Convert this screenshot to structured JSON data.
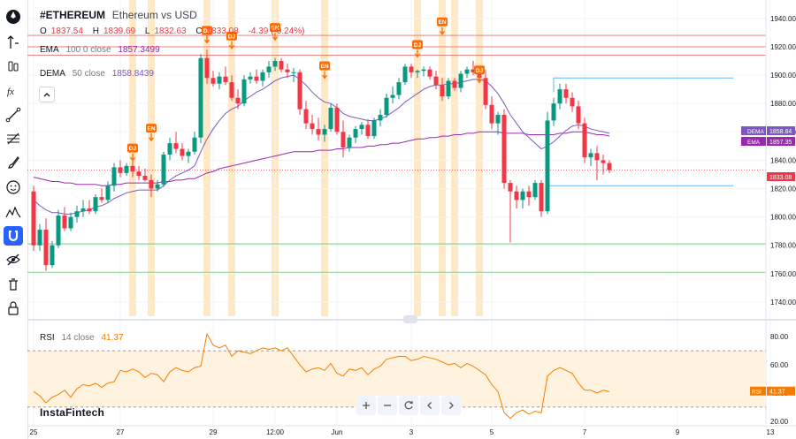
{
  "toolbar": {
    "icons": [
      "logo-icon",
      "cursor-icon",
      "bars-icon",
      "fx-icon",
      "trendline-icon",
      "fibonacci-icon",
      "brush-icon",
      "emoji-icon",
      "pattern-icon",
      "magnet-icon",
      "eye-off-icon",
      "trash-icon",
      "lock-icon"
    ],
    "active": "magnet-icon"
  },
  "header": {
    "symbol": "#ETHEREUM",
    "description": "Ethereum vs USD",
    "open_label": "O",
    "open": "1837.54",
    "high_label": "H",
    "high": "1839.69",
    "low_label": "L",
    "low": "1832.63",
    "close_label": "C",
    "close": "1833.08",
    "change": "-4.39 (-0.24%)"
  },
  "indicators": {
    "ema": {
      "name": "EMA",
      "params": "100 0 close",
      "value": "1857.3499",
      "color": "#9c27b0"
    },
    "dema": {
      "name": "DEMA",
      "params": "50 close",
      "value": "1858.8439",
      "color": "#7e57c2"
    },
    "rsi": {
      "name": "RSI",
      "params": "14 close",
      "value": "41.37",
      "color": "#f57c00"
    }
  },
  "brand": "InstaFintech",
  "colors": {
    "up": "#089981",
    "down": "#f23645",
    "grid": "#f0f3fa",
    "band": "#ffe0b2",
    "flag": "#ff6d00"
  },
  "chart_data": [
    {
      "type": "candlestick",
      "title": "#ETHEREUM",
      "subtitle": "Ethereum vs USD",
      "y_ticks": [
        1740,
        1760,
        1780,
        1800,
        1820,
        1840,
        1860,
        1880,
        1900,
        1920,
        1940
      ],
      "ylim": [
        1730,
        1948
      ],
      "x_ticks": [
        "25",
        "27",
        "29",
        "12:00",
        "Jun",
        "3",
        "5",
        "7",
        "9",
        "13"
      ],
      "x_tick_pos": [
        0,
        14,
        29,
        39,
        49,
        61,
        74,
        89,
        104,
        119
      ],
      "candles": [
        [
          1818,
          1822,
          1776,
          1780
        ],
        [
          1780,
          1795,
          1776,
          1791
        ],
        [
          1791,
          1799,
          1762,
          1766
        ],
        [
          1766,
          1783,
          1764,
          1780
        ],
        [
          1780,
          1805,
          1778,
          1801
        ],
        [
          1801,
          1807,
          1790,
          1792
        ],
        [
          1792,
          1803,
          1790,
          1800
        ],
        [
          1800,
          1808,
          1796,
          1804
        ],
        [
          1804,
          1812,
          1800,
          1806
        ],
        [
          1806,
          1812,
          1802,
          1804
        ],
        [
          1804,
          1816,
          1802,
          1814
        ],
        [
          1814,
          1820,
          1810,
          1812
        ],
        [
          1812,
          1825,
          1810,
          1822
        ],
        [
          1822,
          1838,
          1818,
          1835
        ],
        [
          1835,
          1840,
          1828,
          1831
        ],
        [
          1831,
          1838,
          1829,
          1836
        ],
        [
          1836,
          1840,
          1828,
          1832
        ],
        [
          1832,
          1836,
          1826,
          1829
        ],
        [
          1829,
          1834,
          1825,
          1826
        ],
        [
          1826,
          1830,
          1814,
          1820
        ],
        [
          1820,
          1826,
          1818,
          1823
        ],
        [
          1823,
          1846,
          1821,
          1844
        ],
        [
          1844,
          1856,
          1840,
          1852
        ],
        [
          1852,
          1860,
          1845,
          1848
        ],
        [
          1848,
          1852,
          1840,
          1843
        ],
        [
          1843,
          1848,
          1838,
          1846
        ],
        [
          1846,
          1860,
          1844,
          1856
        ],
        [
          1856,
          1915,
          1852,
          1912
        ],
        [
          1912,
          1918,
          1894,
          1898
        ],
        [
          1898,
          1903,
          1892,
          1894
        ],
        [
          1894,
          1902,
          1890,
          1899
        ],
        [
          1899,
          1906,
          1893,
          1895
        ],
        [
          1895,
          1900,
          1882,
          1884
        ],
        [
          1884,
          1890,
          1876,
          1880
        ],
        [
          1880,
          1900,
          1878,
          1897
        ],
        [
          1897,
          1902,
          1894,
          1899
        ],
        [
          1899,
          1904,
          1894,
          1896
        ],
        [
          1896,
          1904,
          1892,
          1902
        ],
        [
          1902,
          1910,
          1898,
          1906
        ],
        [
          1906,
          1912,
          1903,
          1910
        ],
        [
          1910,
          1912,
          1902,
          1904
        ],
        [
          1904,
          1908,
          1898,
          1902
        ],
        [
          1902,
          1905,
          1895,
          1902
        ],
        [
          1902,
          1904,
          1872,
          1876
        ],
        [
          1876,
          1882,
          1862,
          1866
        ],
        [
          1866,
          1872,
          1858,
          1862
        ],
        [
          1862,
          1870,
          1854,
          1858
        ],
        [
          1858,
          1865,
          1853,
          1862
        ],
        [
          1862,
          1880,
          1860,
          1877
        ],
        [
          1877,
          1880,
          1858,
          1860
        ],
        [
          1860,
          1868,
          1842,
          1849
        ],
        [
          1849,
          1858,
          1846,
          1856
        ],
        [
          1856,
          1864,
          1852,
          1862
        ],
        [
          1862,
          1867,
          1858,
          1865
        ],
        [
          1865,
          1869,
          1855,
          1857
        ],
        [
          1857,
          1870,
          1855,
          1868
        ],
        [
          1868,
          1876,
          1864,
          1872
        ],
        [
          1872,
          1887,
          1870,
          1884
        ],
        [
          1884,
          1892,
          1880,
          1886
        ],
        [
          1886,
          1898,
          1883,
          1895
        ],
        [
          1895,
          1908,
          1893,
          1906
        ],
        [
          1906,
          1908,
          1898,
          1902
        ],
        [
          1902,
          1904,
          1898,
          1903
        ],
        [
          1903,
          1906,
          1899,
          1904
        ],
        [
          1904,
          1906,
          1897,
          1899
        ],
        [
          1899,
          1903,
          1890,
          1893
        ],
        [
          1893,
          1898,
          1882,
          1885
        ],
        [
          1885,
          1898,
          1883,
          1896
        ],
        [
          1896,
          1898,
          1889,
          1891
        ],
        [
          1891,
          1903,
          1888,
          1901
        ],
        [
          1901,
          1906,
          1898,
          1904
        ],
        [
          1904,
          1910,
          1900,
          1902
        ],
        [
          1902,
          1906,
          1896,
          1898
        ],
        [
          1898,
          1904,
          1876,
          1879
        ],
        [
          1879,
          1885,
          1862,
          1866
        ],
        [
          1866,
          1874,
          1858,
          1872
        ],
        [
          1872,
          1876,
          1820,
          1824
        ],
        [
          1824,
          1826,
          1782,
          1818
        ],
        [
          1818,
          1822,
          1806,
          1812
        ],
        [
          1812,
          1820,
          1806,
          1818
        ],
        [
          1818,
          1822,
          1808,
          1814
        ],
        [
          1814,
          1826,
          1812,
          1824
        ],
        [
          1824,
          1826,
          1800,
          1804
        ],
        [
          1804,
          1874,
          1802,
          1868
        ],
        [
          1868,
          1884,
          1864,
          1880
        ],
        [
          1880,
          1894,
          1876,
          1890
        ],
        [
          1890,
          1894,
          1880,
          1884
        ],
        [
          1884,
          1888,
          1874,
          1878
        ],
        [
          1878,
          1882,
          1862,
          1866
        ],
        [
          1866,
          1870,
          1838,
          1842
        ],
        [
          1842,
          1848,
          1836,
          1845
        ],
        [
          1845,
          1850,
          1826,
          1840
        ],
        [
          1840,
          1844,
          1830,
          1838
        ],
        [
          1838,
          1840,
          1831,
          1833
        ]
      ],
      "ema": [
        1828,
        1827,
        1826,
        1825,
        1825,
        1824,
        1824,
        1823,
        1823,
        1823,
        1823,
        1822,
        1822,
        1823,
        1823,
        1824,
        1824,
        1824,
        1824,
        1824,
        1824,
        1825,
        1825,
        1826,
        1826,
        1827,
        1827,
        1829,
        1831,
        1832,
        1834,
        1835,
        1836,
        1837,
        1838,
        1839,
        1840,
        1841,
        1842,
        1843,
        1844,
        1845,
        1846,
        1846,
        1846,
        1846,
        1847,
        1847,
        1847,
        1848,
        1848,
        1849,
        1849,
        1849,
        1850,
        1850,
        1851,
        1851,
        1852,
        1852,
        1853,
        1854,
        1855,
        1855,
        1856,
        1856,
        1857,
        1857,
        1858,
        1858,
        1859,
        1859,
        1860,
        1860,
        1860,
        1860,
        1859,
        1859,
        1859,
        1859,
        1858,
        1858,
        1858,
        1858,
        1858,
        1859,
        1859,
        1860,
        1860,
        1860,
        1859,
        1858,
        1858,
        1857
      ],
      "dema": [
        1812,
        1808,
        1805,
        1803,
        1803,
        1802,
        1802,
        1803,
        1804,
        1805,
        1807,
        1808,
        1810,
        1813,
        1815,
        1817,
        1818,
        1819,
        1819,
        1819,
        1819,
        1822,
        1826,
        1829,
        1831,
        1833,
        1836,
        1846,
        1855,
        1862,
        1868,
        1873,
        1876,
        1878,
        1882,
        1885,
        1888,
        1890,
        1893,
        1896,
        1898,
        1899,
        1900,
        1897,
        1893,
        1888,
        1884,
        1881,
        1880,
        1877,
        1873,
        1871,
        1870,
        1869,
        1868,
        1868,
        1869,
        1871,
        1874,
        1877,
        1881,
        1884,
        1887,
        1890,
        1892,
        1893,
        1893,
        1894,
        1894,
        1895,
        1896,
        1897,
        1897,
        1896,
        1892,
        1887,
        1880,
        1872,
        1866,
        1860,
        1856,
        1852,
        1848,
        1850,
        1853,
        1857,
        1861,
        1864,
        1865,
        1864,
        1862,
        1861,
        1860,
        1859
      ],
      "bands": [
        16,
        19,
        28,
        32,
        39,
        47,
        62,
        66,
        68,
        72
      ],
      "flags": [
        {
          "label": "DJ",
          "i": 16,
          "y": 1838
        },
        {
          "label": "EN",
          "i": 19,
          "y": 1852
        },
        {
          "label": "DJ",
          "i": 28,
          "y": 1921
        },
        {
          "label": "DJ",
          "i": 32,
          "y": 1917
        },
        {
          "label": "EN",
          "i": 39,
          "y": 1923
        },
        {
          "label": "EN",
          "i": 47,
          "y": 1896
        },
        {
          "label": "DJ",
          "i": 62,
          "y": 1911
        },
        {
          "label": "EN",
          "i": 66,
          "y": 1927
        },
        {
          "label": "DJ",
          "i": 72,
          "y": 1893
        }
      ],
      "hlines_red": [
        1928,
        1920,
        1914
      ],
      "hlines_green": [
        1781,
        1761
      ],
      "blue_segments": [
        {
          "y": 1898,
          "from": 84,
          "to": 113
        },
        {
          "y": 1822,
          "from": 83,
          "to": 113
        }
      ],
      "last_price": "1833.08",
      "price_badges": [
        {
          "name": "DEMA",
          "value": "1858.84"
        },
        {
          "name": "EMA",
          "value": "1857.35"
        },
        {
          "name": "",
          "value": "1833.08"
        }
      ]
    },
    {
      "type": "line",
      "title": "RSI",
      "y_ticks": [
        "80.00",
        "60.00",
        "40.00",
        "20.00"
      ],
      "ylim": [
        18,
        87
      ],
      "levels": [
        70,
        30
      ],
      "values": [
        41,
        38,
        33,
        37,
        39,
        42,
        37,
        43,
        46,
        45,
        47,
        44,
        47,
        48,
        56,
        55,
        57,
        55,
        51,
        54,
        53,
        48,
        55,
        58,
        56,
        55,
        58,
        59,
        82,
        74,
        72,
        74,
        66,
        70,
        69,
        68,
        70,
        72,
        71,
        72,
        70,
        72,
        66,
        60,
        55,
        57,
        58,
        56,
        61,
        54,
        52,
        57,
        56,
        58,
        53,
        57,
        59,
        64,
        65,
        66,
        66,
        63,
        64,
        66,
        65,
        64,
        62,
        60,
        61,
        58,
        61,
        59,
        56,
        53,
        46,
        41,
        26,
        22,
        26,
        28,
        25,
        27,
        26,
        52,
        56,
        58,
        56,
        54,
        47,
        42,
        42,
        40,
        42,
        41
      ],
      "last_value": "41.37"
    }
  ]
}
